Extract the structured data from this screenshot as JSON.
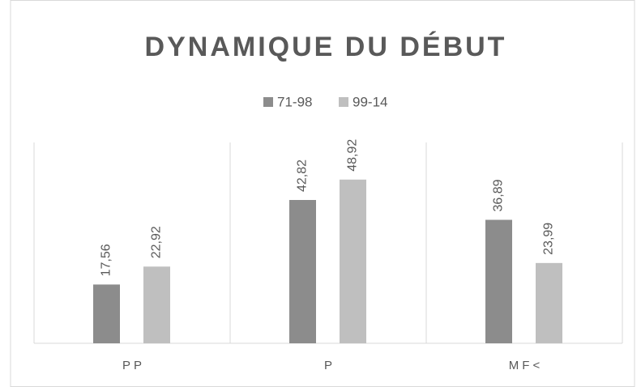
{
  "chart_data": {
    "type": "bar",
    "title": "DYNAMIQUE DU DÉBUT",
    "categories": [
      "PP",
      "P",
      "MF<"
    ],
    "series": [
      {
        "name": "71-98",
        "color": "#8c8c8c",
        "values": [
          17.56,
          42.82,
          36.89
        ],
        "value_labels": [
          "17,56",
          "42,82",
          "36,89"
        ]
      },
      {
        "name": "99-14",
        "color": "#bfbfbf",
        "values": [
          22.92,
          48.92,
          23.99
        ],
        "value_labels": [
          "22,92",
          "48,92",
          "23,99"
        ]
      }
    ],
    "ylim": [
      0,
      60
    ],
    "legend": "top"
  }
}
